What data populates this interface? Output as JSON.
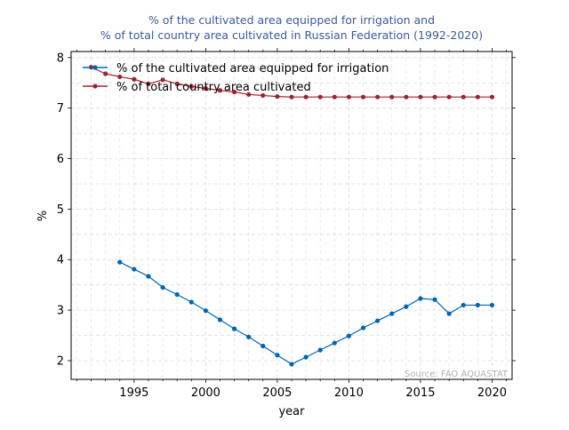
{
  "chart_data": {
    "type": "line",
    "title_line1": "% of the cultivated area equipped for irrigation and",
    "title_line2": "% of total country area cultivated in Russian Federation (1992-2020)",
    "xlabel": "year",
    "ylabel": "%",
    "xlim": [
      1990.6,
      2021.4
    ],
    "ylim": [
      1.63,
      8.12
    ],
    "x_ticks": [
      1995,
      2000,
      2005,
      2010,
      2015,
      2020
    ],
    "y_ticks": [
      2,
      3,
      4,
      5,
      6,
      7,
      8
    ],
    "grid": true,
    "legend_position": "top-left",
    "source": "Source: FAO AQUASTAT",
    "colors": {
      "title": "#3a5a9a",
      "source": "#b0b0b0"
    },
    "series": [
      {
        "name": "% of the cultivated area equipped for irrigation",
        "color": "#0066b2",
        "x": [
          1994,
          1995,
          1996,
          1997,
          1998,
          1999,
          2000,
          2001,
          2002,
          2003,
          2004,
          2005,
          2006,
          2007,
          2008,
          2009,
          2010,
          2011,
          2012,
          2013,
          2014,
          2015,
          2016,
          2017,
          2018,
          2019,
          2020
        ],
        "values": [
          3.95,
          3.81,
          3.67,
          3.45,
          3.31,
          3.16,
          2.99,
          2.81,
          2.63,
          2.47,
          2.29,
          2.11,
          1.93,
          2.07,
          2.21,
          2.35,
          2.49,
          2.65,
          2.79,
          2.93,
          3.07,
          3.23,
          3.21,
          2.93,
          3.1,
          3.1,
          3.1
        ]
      },
      {
        "name": "% of total country area cultivated",
        "color": "#a0232e",
        "x": [
          1992,
          1993,
          1994,
          1995,
          1996,
          1997,
          1998,
          1999,
          2000,
          2001,
          2002,
          2003,
          2004,
          2005,
          2006,
          2007,
          2008,
          2009,
          2010,
          2011,
          2012,
          2013,
          2014,
          2015,
          2016,
          2017,
          2018,
          2019,
          2020
        ],
        "values": [
          7.81,
          7.68,
          7.62,
          7.57,
          7.48,
          7.56,
          7.48,
          7.43,
          7.39,
          7.35,
          7.32,
          7.27,
          7.25,
          7.23,
          7.22,
          7.22,
          7.22,
          7.22,
          7.22,
          7.22,
          7.22,
          7.22,
          7.22,
          7.22,
          7.22,
          7.22,
          7.22,
          7.22,
          7.22
        ]
      }
    ]
  }
}
